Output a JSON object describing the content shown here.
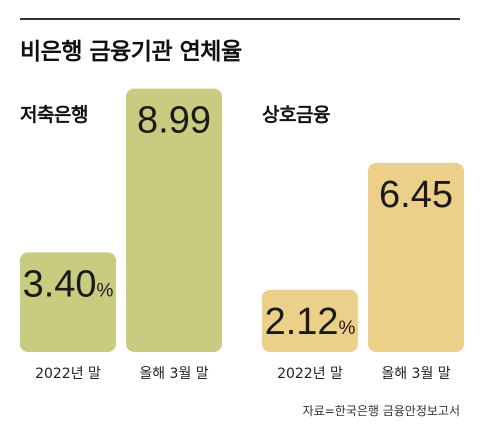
{
  "title": "비은행 금융기관 연체율",
  "source": "자료=한국은행 금융안정보고서",
  "chart_data": [
    {
      "type": "bar",
      "group_label": "저축은행",
      "categories": [
        "2022년 말",
        "올해 3월 말"
      ],
      "values": [
        3.4,
        8.99
      ],
      "value_labels": [
        "3.40",
        "8.99"
      ],
      "unit_labels": [
        "%",
        ""
      ],
      "color": "#c9cc80",
      "ylim": [
        0,
        10
      ]
    },
    {
      "type": "bar",
      "group_label": "상호금융",
      "categories": [
        "2022년 말",
        "올해 3월 말"
      ],
      "values": [
        2.12,
        6.45
      ],
      "value_labels": [
        "2.12",
        "6.45"
      ],
      "unit_labels": [
        "%",
        ""
      ],
      "color": "#ecd089",
      "ylim": [
        0,
        10
      ]
    }
  ]
}
